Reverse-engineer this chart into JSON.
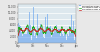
{
  "n_points": 2928,
  "y_max": 13000,
  "y_min": 0,
  "bar_color": "#5599ee",
  "bar_alpha": 0.55,
  "line75_color": "#22aa22",
  "line250_color": "#cc2222",
  "background_color": "#e8e8e8",
  "plot_bg_color": "#dde8ee",
  "grid_color": "#ffffff",
  "tick_label_color": "#444444",
  "legend_labels": [
    "Production from wind turbines",
    "Smoothed over 75h",
    "Smoothed over 250h"
  ],
  "legend_colors": [
    "#5599ee",
    "#22aa22",
    "#cc2222"
  ],
  "seed": 42,
  "noise_scale": 2200,
  "trend_base": 1800,
  "trend_amplitude": 2500,
  "spike_probability": 0.025,
  "spike_max": 12500,
  "yticks": [
    0,
    2000,
    4000,
    6000,
    8000,
    10000,
    12000
  ],
  "ytick_labels": [
    "0",
    "2,000",
    "4,000",
    "6,000",
    "8,000",
    "10,000",
    "12,000"
  ],
  "xtick_positions": [
    0,
    744,
    1464,
    2208,
    2928
  ],
  "xtick_labels": [
    "Sep",
    "Oct",
    "Nov",
    "Dec",
    "Jan"
  ]
}
